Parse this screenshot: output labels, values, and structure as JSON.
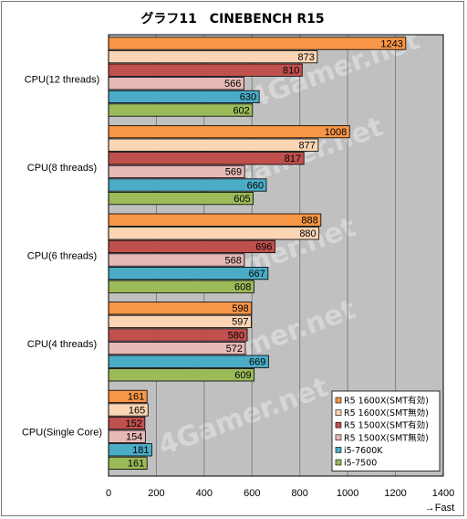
{
  "chart_data": {
    "type": "bar",
    "orientation": "horizontal",
    "title": "グラフ11　CINEBENCH R15",
    "categories": [
      "CPU(12 threads)",
      "CPU(8 threads)",
      "CPU(6 threads)",
      "CPU(4 threads)",
      "CPU(Single Core)"
    ],
    "series": [
      {
        "name": "R5 1600X(SMT有効)",
        "color": "#f79646",
        "values": [
          1243,
          1008,
          888,
          598,
          161
        ]
      },
      {
        "name": "R5 1600X(SMT無効)",
        "color": "#fcd5b4",
        "values": [
          873,
          877,
          880,
          597,
          165
        ]
      },
      {
        "name": "R5 1500X(SMT有効)",
        "color": "#c0504d",
        "values": [
          810,
          817,
          696,
          580,
          152
        ]
      },
      {
        "name": "R5 1500X(SMT無効)",
        "color": "#e6b8b7",
        "values": [
          566,
          569,
          568,
          572,
          154
        ]
      },
      {
        "name": "i5-7600K",
        "color": "#4bacc6",
        "values": [
          630,
          660,
          667,
          669,
          181
        ]
      },
      {
        "name": "i5-7500",
        "color": "#9bbb59",
        "values": [
          602,
          605,
          608,
          609,
          161
        ]
      }
    ],
    "xlim": [
      0,
      1400
    ],
    "xticks": [
      "0",
      "200",
      "400",
      "600",
      "800",
      "1000",
      "1200",
      "1400"
    ],
    "xlabel": "→Fast",
    "grid": true,
    "legend_position": "bottom-right",
    "plot_background": "#c0c0c0",
    "watermark": "4Gamer.net"
  }
}
